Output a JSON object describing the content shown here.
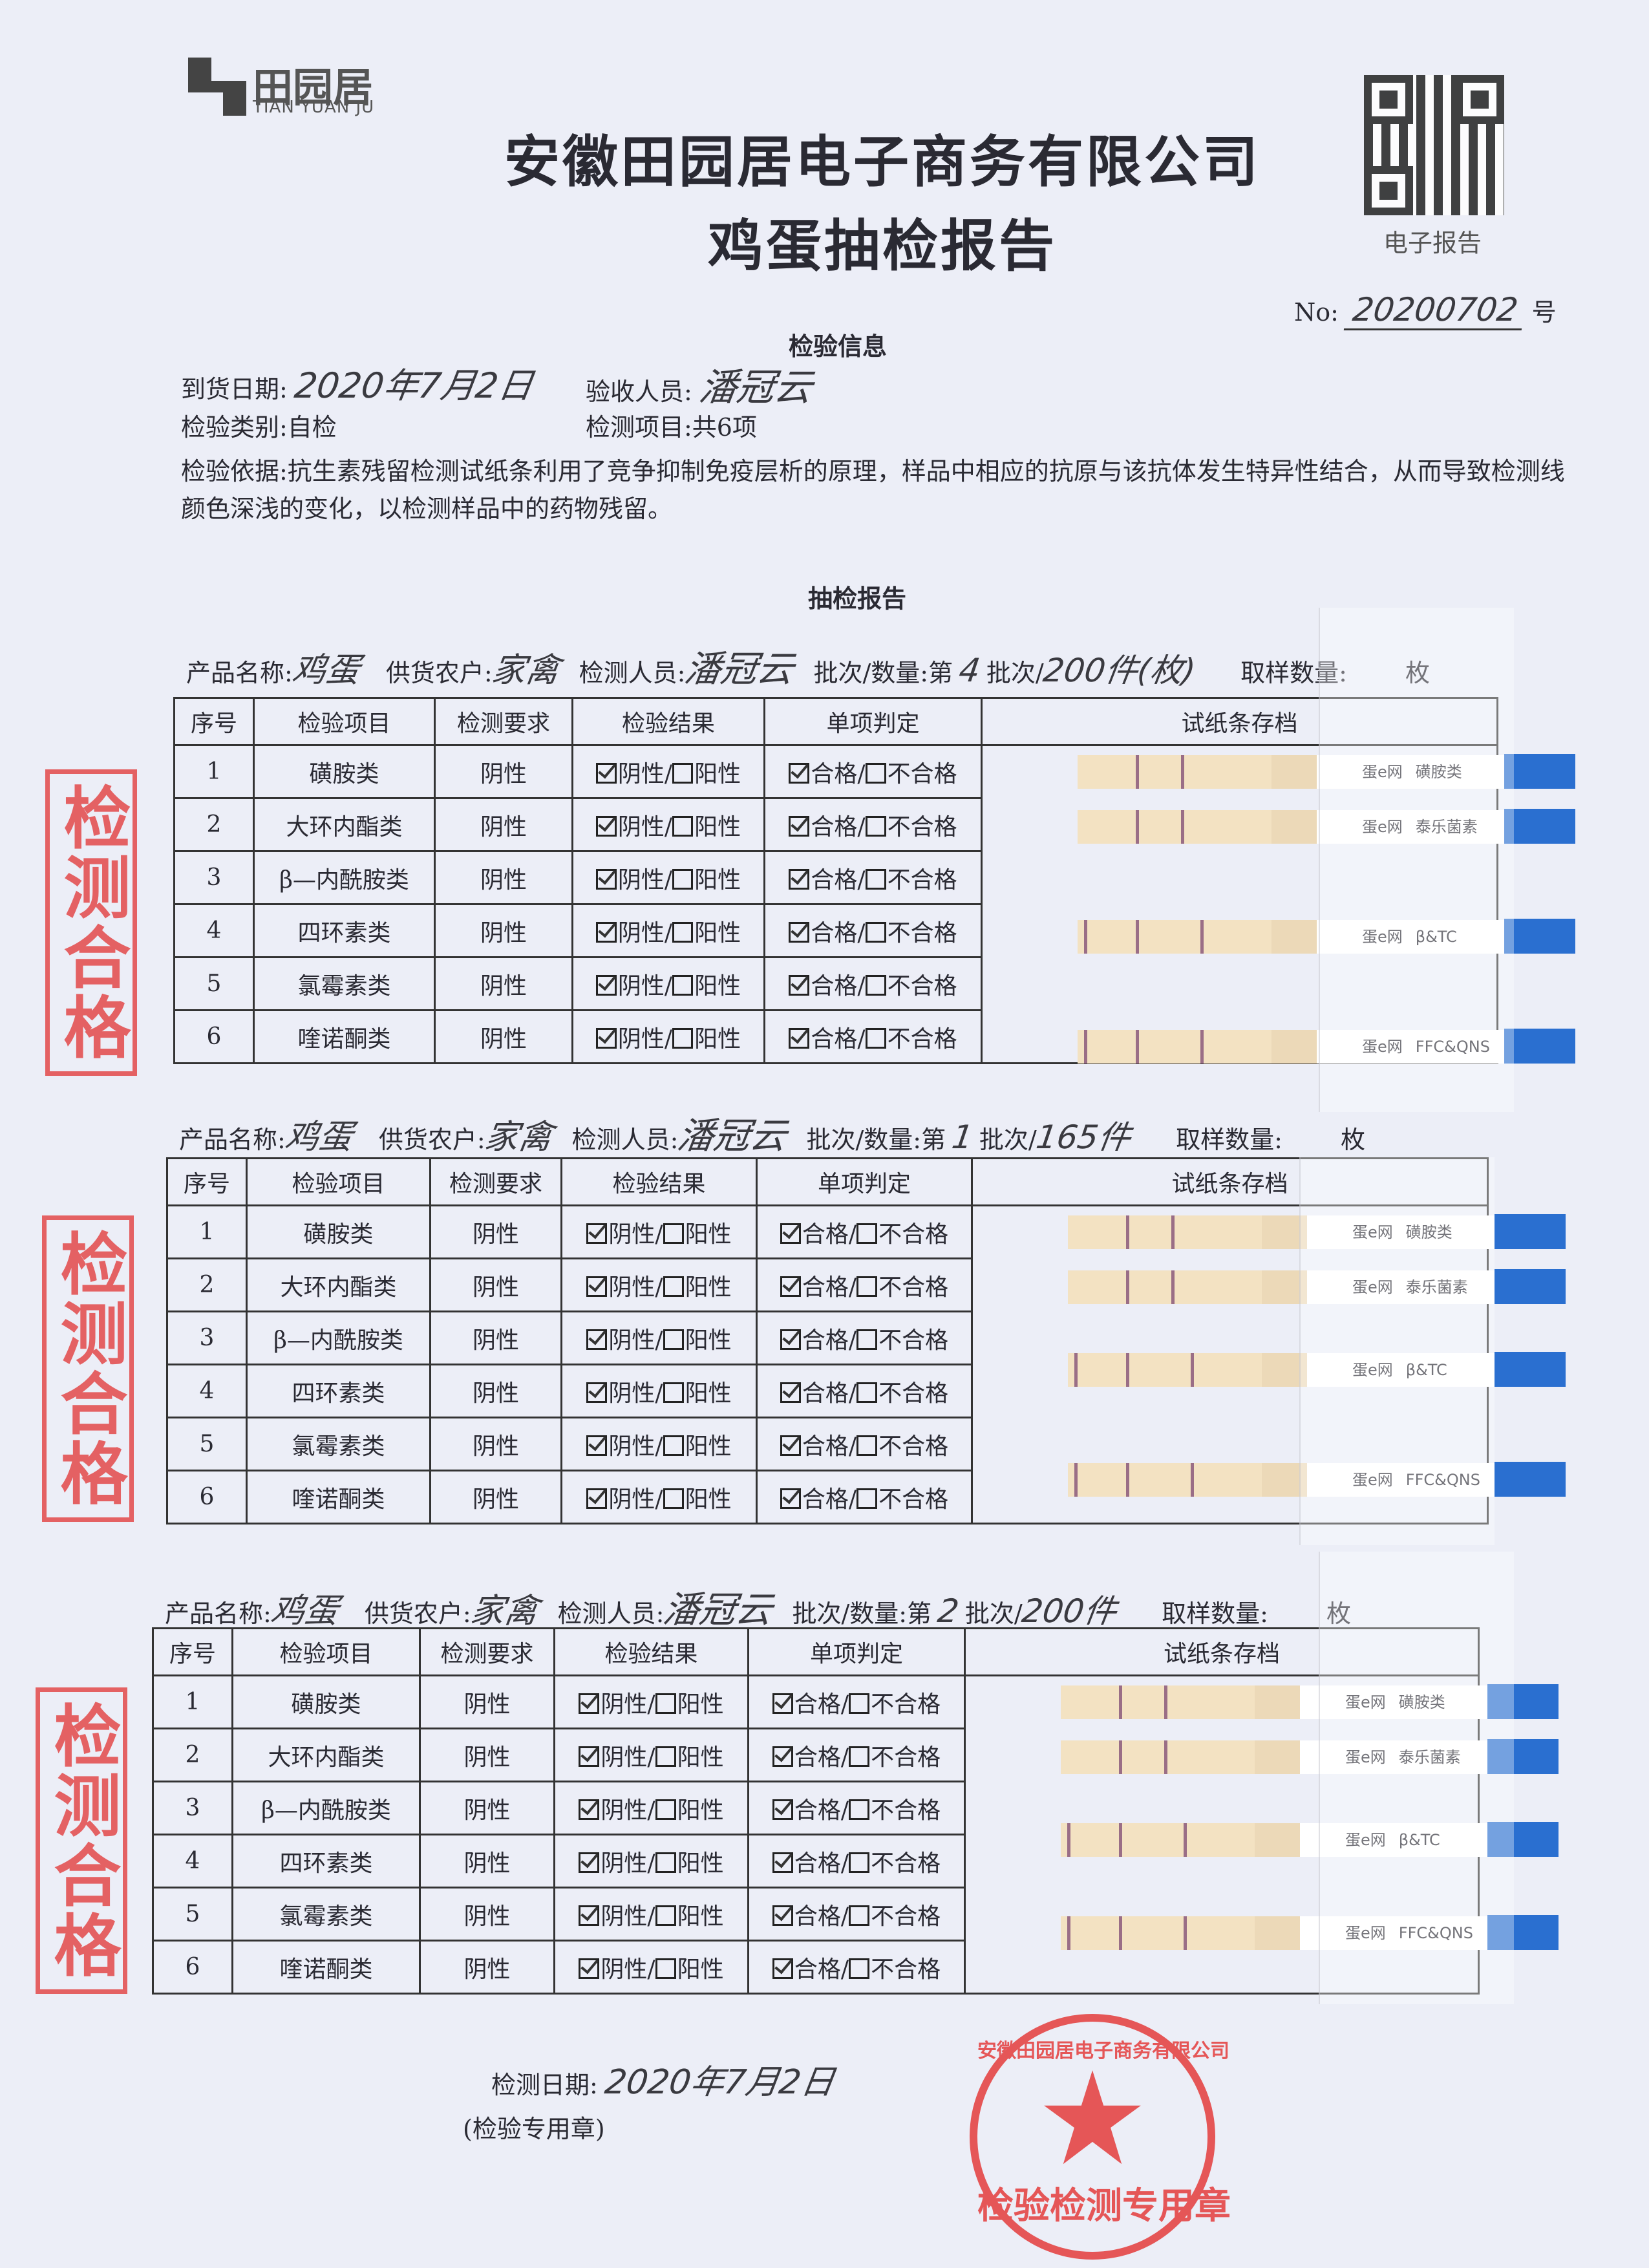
{
  "logo": {
    "cn": "田园居",
    "en": "TIAN YUAN JU"
  },
  "title": {
    "company": "安徽田园居电子商务有限公司",
    "report": "鸡蛋抽检报告"
  },
  "qr": {
    "caption": "电子报告"
  },
  "number": {
    "label": "No:",
    "value": "20200702",
    "suffix": "号"
  },
  "info": {
    "heading": "检验信息",
    "arrival_label": "到货日期:",
    "arrival_value": "2020年7月2日",
    "receiver_label": "验收人员:",
    "receiver_value": "潘冠云",
    "category": "检验类别:自检",
    "items": "检测项目:共6项",
    "basis": "检验依据:抗生素残留检测试纸条利用了竞争抑制免疫层析的原理，样品中相应的抗原与该抗体发生特异性结合，从而导致检测线颜色深浅的变化，以检测样品中的药物残留。"
  },
  "report_heading": "抽检报告",
  "headers": [
    "序号",
    "检验项目",
    "检测要求",
    "检验结果",
    "单项判定",
    "试纸条存档"
  ],
  "labels": {
    "product": "产品名称:",
    "farmer": "供货农户:",
    "tester": "检测人员:",
    "batch": "批次/数量:第",
    "batch_unit": "批次/",
    "sample": "取样数量:",
    "sample_unit": "枚",
    "negative": "阴性",
    "positive": "阳性",
    "pass": "合格",
    "fail": "不合格",
    "stamp_ok": "检测合格"
  },
  "sections": [
    {
      "product": "鸡蛋",
      "farmer": "家禽",
      "tester": "潘冠云",
      "batch": "4",
      "quantity": "200件(枚)",
      "rows": [
        {
          "no": "1",
          "item": "磺胺类",
          "req": "阴性",
          "negative": true,
          "pass": true
        },
        {
          "no": "2",
          "item": "大环内酯类",
          "req": "阴性",
          "negative": true,
          "pass": true
        },
        {
          "no": "3",
          "item": "β—内酰胺类",
          "req": "阴性",
          "negative": true,
          "pass": true
        },
        {
          "no": "4",
          "item": "四环素类",
          "req": "阴性",
          "negative": true,
          "pass": true
        },
        {
          "no": "5",
          "item": "氯霉素类",
          "req": "阴性",
          "negative": true,
          "pass": true
        },
        {
          "no": "6",
          "item": "喹诺酮类",
          "req": "阴性",
          "negative": true,
          "pass": true
        }
      ],
      "strips": [
        {
          "brand": "蛋e网",
          "name": "磺胺类"
        },
        {
          "brand": "蛋e网",
          "name": "泰乐菌素"
        },
        {
          "brand": "蛋e网",
          "name": "β&TC"
        },
        {
          "brand": "蛋e网",
          "name": "FFC&QNS"
        }
      ]
    },
    {
      "product": "鸡蛋",
      "farmer": "家禽",
      "tester": "潘冠云",
      "batch": "1",
      "quantity": "165件",
      "rows": [
        {
          "no": "1",
          "item": "磺胺类",
          "req": "阴性",
          "negative": true,
          "pass": true
        },
        {
          "no": "2",
          "item": "大环内酯类",
          "req": "阴性",
          "negative": true,
          "pass": true
        },
        {
          "no": "3",
          "item": "β—内酰胺类",
          "req": "阴性",
          "negative": true,
          "pass": true
        },
        {
          "no": "4",
          "item": "四环素类",
          "req": "阴性",
          "negative": true,
          "pass": true
        },
        {
          "no": "5",
          "item": "氯霉素类",
          "req": "阴性",
          "negative": true,
          "pass": true
        },
        {
          "no": "6",
          "item": "喹诺酮类",
          "req": "阴性",
          "negative": true,
          "pass": true
        }
      ],
      "strips": [
        {
          "brand": "蛋e网",
          "name": "磺胺类"
        },
        {
          "brand": "蛋e网",
          "name": "泰乐菌素"
        },
        {
          "brand": "蛋e网",
          "name": "β&TC"
        },
        {
          "brand": "蛋e网",
          "name": "FFC&QNS"
        }
      ]
    },
    {
      "product": "鸡蛋",
      "farmer": "家禽",
      "tester": "潘冠云",
      "batch": "2",
      "quantity": "200件",
      "rows": [
        {
          "no": "1",
          "item": "磺胺类",
          "req": "阴性",
          "negative": true,
          "pass": true
        },
        {
          "no": "2",
          "item": "大环内酯类",
          "req": "阴性",
          "negative": true,
          "pass": true
        },
        {
          "no": "3",
          "item": "β—内酰胺类",
          "req": "阴性",
          "negative": true,
          "pass": true
        },
        {
          "no": "4",
          "item": "四环素类",
          "req": "阴性",
          "negative": true,
          "pass": true
        },
        {
          "no": "5",
          "item": "氯霉素类",
          "req": "阴性",
          "negative": true,
          "pass": true
        },
        {
          "no": "6",
          "item": "喹诺酮类",
          "req": "阴性",
          "negative": true,
          "pass": true
        }
      ],
      "strips": [
        {
          "brand": "蛋e网",
          "name": "磺胺类"
        },
        {
          "brand": "蛋e网",
          "name": "泰乐菌素"
        },
        {
          "brand": "蛋e网",
          "name": "β&TC"
        },
        {
          "brand": "蛋e网",
          "name": "FFC&QNS"
        }
      ]
    }
  ],
  "footer": {
    "date_label": "检测日期:",
    "date_value": "2020年7月2日",
    "seal_label": "(检验专用章)"
  },
  "seal": {
    "ring": "安徽田园居电子商务有限公司",
    "bottom": "检验检测专用章"
  },
  "colors": {
    "stamp": "#e23a3a",
    "strip_tab": "#2a6fd0",
    "ink": "#2a2a33"
  }
}
